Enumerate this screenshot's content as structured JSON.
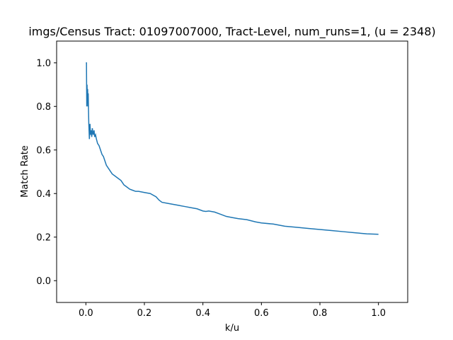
{
  "chart_data": {
    "type": "line",
    "title": "imgs/Census Tract: 01097007000, Tract-Level,  num_runs=1, (u = 2348)",
    "xlabel": "k/u",
    "ylabel": "Match Rate",
    "xlim": [
      -0.1,
      1.1
    ],
    "ylim": [
      -0.1,
      1.1
    ],
    "xticks": [
      0.0,
      0.2,
      0.4,
      0.6,
      0.8,
      1.0
    ],
    "xtick_labels": [
      "0.0",
      "0.2",
      "0.4",
      "0.6",
      "0.8",
      "1.0"
    ],
    "yticks": [
      0.0,
      0.2,
      0.4,
      0.6,
      0.8,
      1.0
    ],
    "ytick_labels": [
      "0.0",
      "0.2",
      "0.4",
      "0.6",
      "0.8",
      "1.0"
    ],
    "grid": false,
    "series": [
      {
        "color": "#1f77b4",
        "x": [
          0.0,
          0.002,
          0.003,
          0.004,
          0.005,
          0.006,
          0.007,
          0.008,
          0.009,
          0.01,
          0.012,
          0.014,
          0.016,
          0.018,
          0.02,
          0.022,
          0.025,
          0.028,
          0.03,
          0.033,
          0.036,
          0.04,
          0.045,
          0.05,
          0.055,
          0.06,
          0.065,
          0.07,
          0.08,
          0.09,
          0.1,
          0.11,
          0.12,
          0.13,
          0.14,
          0.15,
          0.16,
          0.17,
          0.18,
          0.2,
          0.22,
          0.24,
          0.25,
          0.26,
          0.28,
          0.3,
          0.32,
          0.34,
          0.36,
          0.38,
          0.4,
          0.41,
          0.42,
          0.44,
          0.46,
          0.48,
          0.5,
          0.52,
          0.55,
          0.58,
          0.6,
          0.64,
          0.68,
          0.72,
          0.76,
          0.8,
          0.84,
          0.88,
          0.92,
          0.96,
          1.0
        ],
        "y": [
          1.0,
          1.0,
          0.8,
          0.9,
          0.82,
          0.88,
          0.8,
          0.86,
          0.78,
          0.72,
          0.65,
          0.72,
          0.67,
          0.69,
          0.66,
          0.7,
          0.67,
          0.69,
          0.66,
          0.67,
          0.65,
          0.63,
          0.62,
          0.6,
          0.58,
          0.57,
          0.55,
          0.53,
          0.51,
          0.49,
          0.48,
          0.47,
          0.46,
          0.44,
          0.43,
          0.42,
          0.415,
          0.41,
          0.41,
          0.405,
          0.4,
          0.385,
          0.37,
          0.36,
          0.355,
          0.35,
          0.345,
          0.34,
          0.335,
          0.33,
          0.32,
          0.318,
          0.32,
          0.315,
          0.305,
          0.295,
          0.29,
          0.285,
          0.28,
          0.27,
          0.265,
          0.26,
          0.25,
          0.245,
          0.24,
          0.235,
          0.23,
          0.225,
          0.22,
          0.215,
          0.213
        ]
      }
    ]
  }
}
